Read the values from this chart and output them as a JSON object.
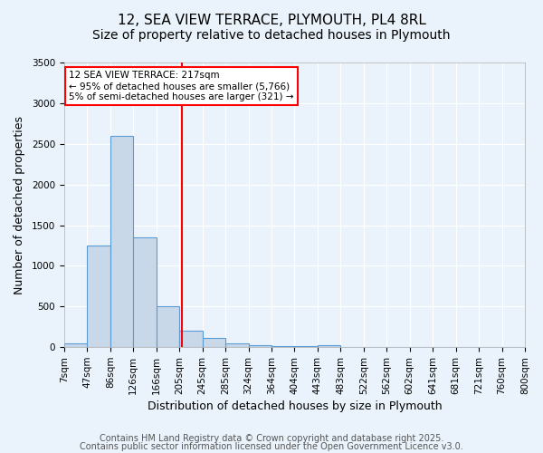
{
  "title_line1": "12, SEA VIEW TERRACE, PLYMOUTH, PL4 8RL",
  "title_line2": "Size of property relative to detached houses in Plymouth",
  "xlabel": "Distribution of detached houses by size in Plymouth",
  "ylabel": "Number of detached properties",
  "bin_labels": [
    "7sqm",
    "47sqm",
    "86sqm",
    "126sqm",
    "166sqm",
    "205sqm",
    "245sqm",
    "285sqm",
    "324sqm",
    "364sqm",
    "404sqm",
    "443sqm",
    "483sqm",
    "522sqm",
    "562sqm",
    "602sqm",
    "641sqm",
    "681sqm",
    "721sqm",
    "760sqm",
    "800sqm"
  ],
  "bar_values": [
    50,
    1250,
    2600,
    1350,
    500,
    200,
    110,
    50,
    30,
    15,
    10,
    30,
    5,
    0,
    0,
    0,
    0,
    0,
    0,
    0
  ],
  "bar_color": "#c8d8e8",
  "bar_edgecolor": "#5b9bd5",
  "vline_x": 5.12,
  "vline_color": "red",
  "annotation_text": "12 SEA VIEW TERRACE: 217sqm\n← 95% of detached houses are smaller (5,766)\n5% of semi-detached houses are larger (321) →",
  "annotation_box_edgecolor": "red",
  "annotation_box_facecolor": "white",
  "ylim": [
    0,
    3500
  ],
  "yticks": [
    0,
    500,
    1000,
    1500,
    2000,
    2500,
    3000,
    3500
  ],
  "footnote_line1": "Contains HM Land Registry data © Crown copyright and database right 2025.",
  "footnote_line2": "Contains public sector information licensed under the Open Government Licence v3.0.",
  "bg_color": "#eaf3fb",
  "grid_color": "white",
  "title_fontsize": 11,
  "subtitle_fontsize": 10,
  "axis_label_fontsize": 9,
  "tick_fontsize": 7.5,
  "annotation_fontsize": 7.5,
  "footnote_fontsize": 7
}
